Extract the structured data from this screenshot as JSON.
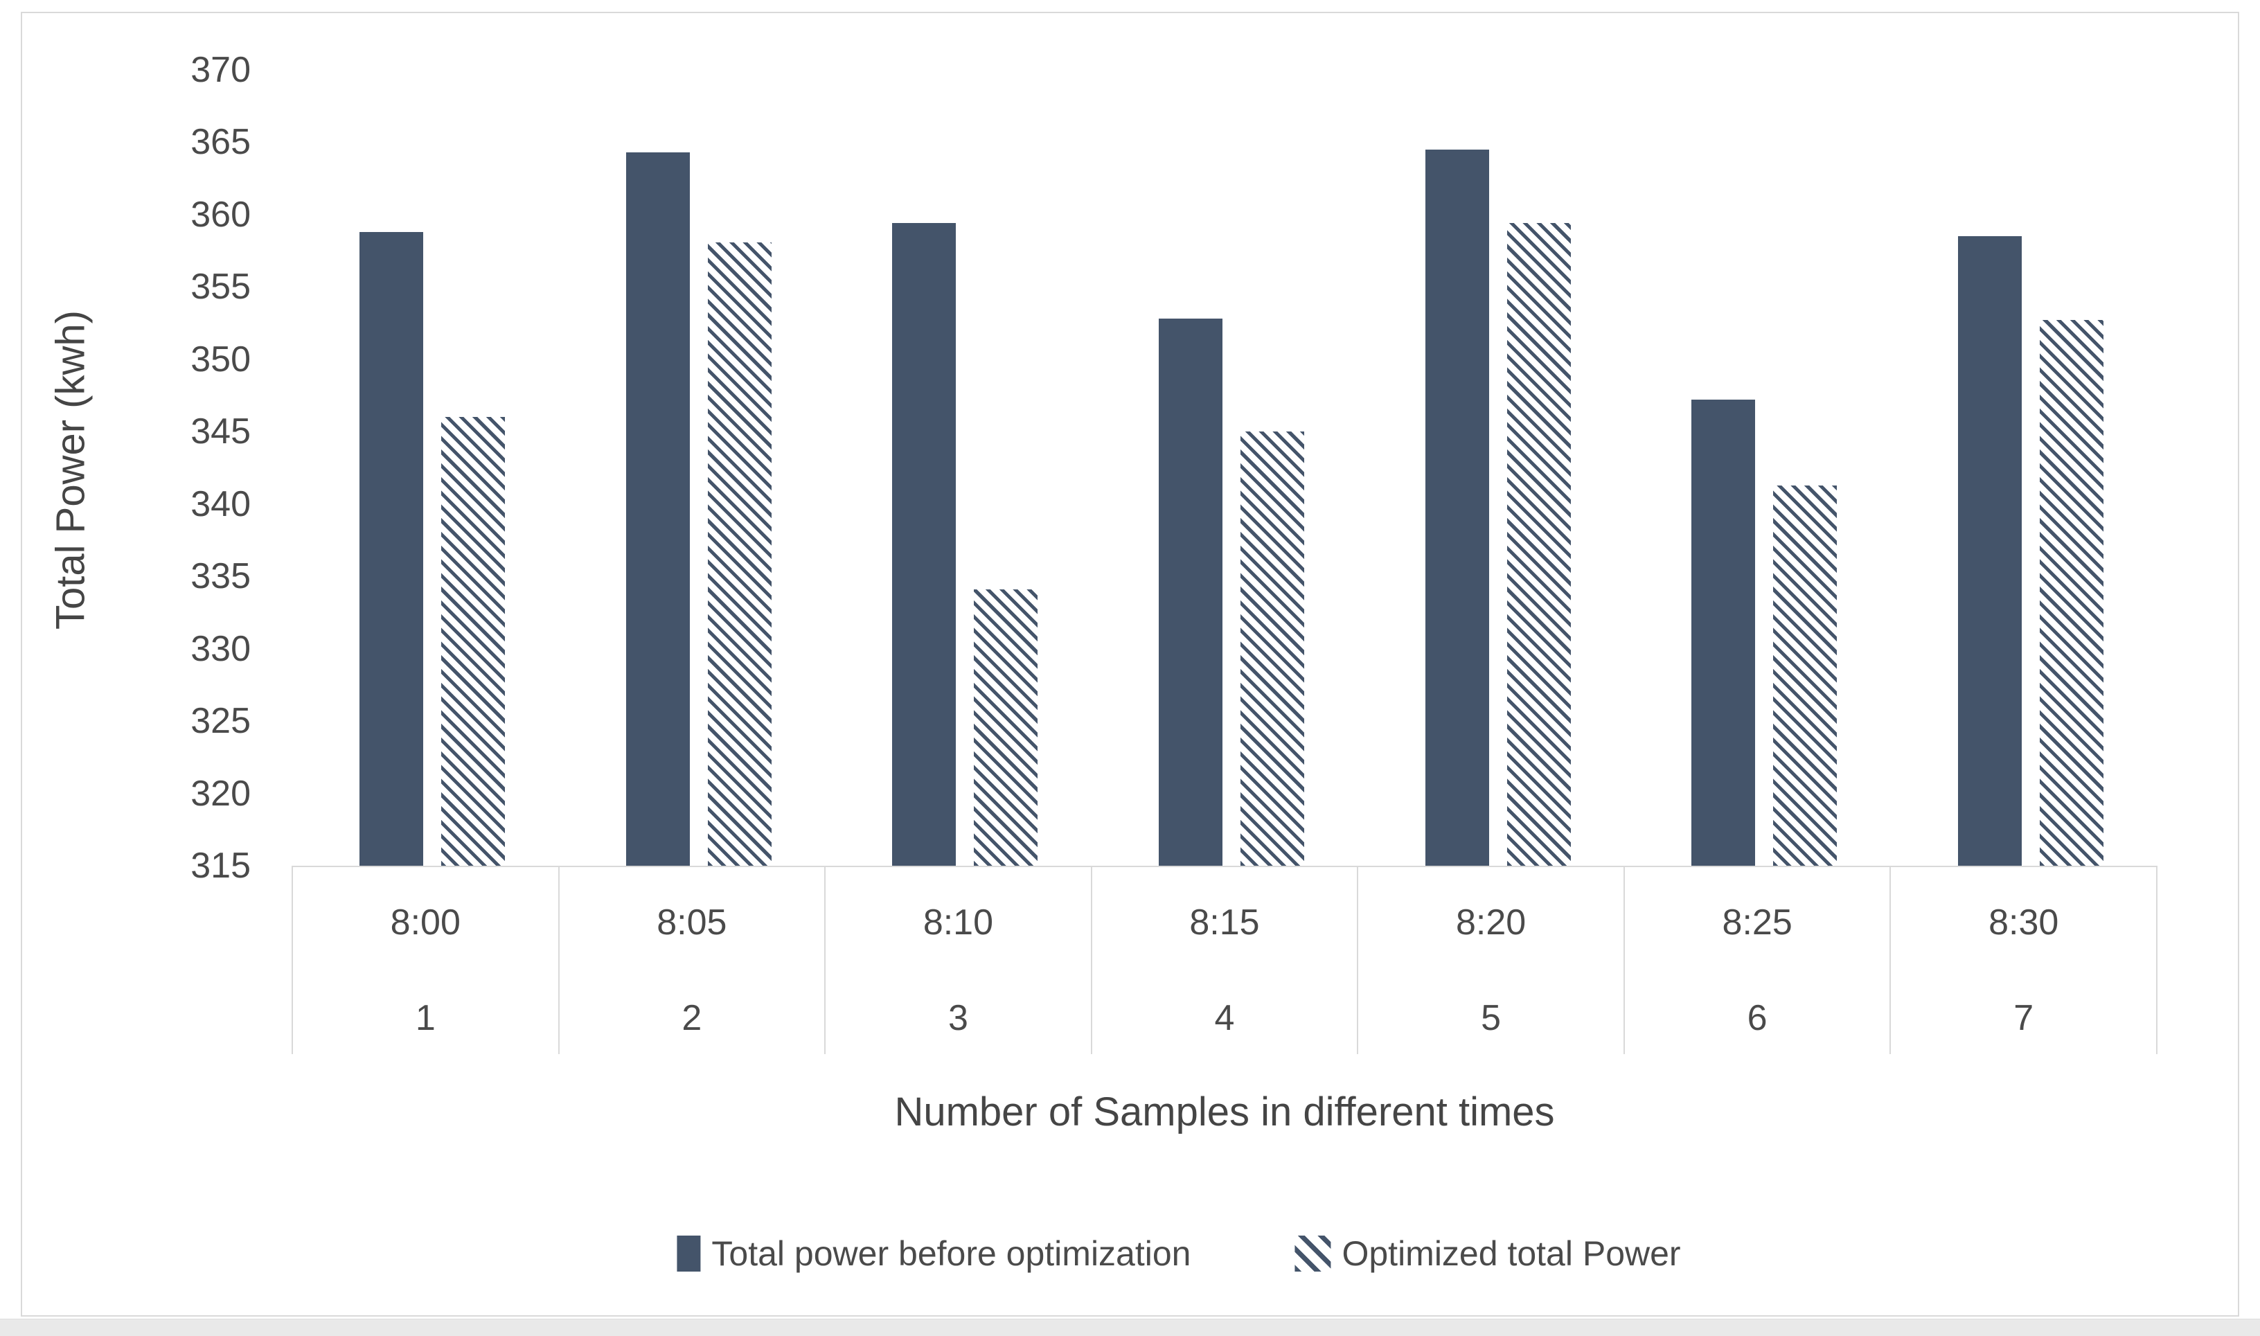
{
  "chart_data": {
    "type": "bar",
    "title": "",
    "xlabel": "Number of Samples in different times",
    "ylabel": "Total Power (kwh)",
    "ylim": [
      315,
      370
    ],
    "ytick_step": 5,
    "ytick_labels": [
      "370",
      "365",
      "360",
      "355",
      "350",
      "345",
      "340",
      "335",
      "330",
      "325",
      "320",
      "315"
    ],
    "grid": "off",
    "legend_position": "bottom",
    "categories": [
      {
        "time": "8:00",
        "sample": "1"
      },
      {
        "time": "8:05",
        "sample": "2"
      },
      {
        "time": "8:10",
        "sample": "3"
      },
      {
        "time": "8:15",
        "sample": "4"
      },
      {
        "time": "8:20",
        "sample": "5"
      },
      {
        "time": "8:25",
        "sample": "6"
      },
      {
        "time": "8:30",
        "sample": "7"
      }
    ],
    "series": [
      {
        "name": "Total power before optimization",
        "style": "solid",
        "values": [
          358.8,
          364.3,
          359.4,
          352.8,
          364.5,
          347.2,
          358.5
        ]
      },
      {
        "name": "Optimized total Power",
        "style": "diagonal-hatch",
        "values": [
          346.0,
          358.1,
          334.1,
          345.0,
          359.4,
          341.3,
          352.7
        ]
      }
    ]
  },
  "colors": {
    "bar_fill": "#44546A",
    "hatch_stroke": "#44546A",
    "axis_text": "#4a4a4a",
    "border": "#d9d9d9",
    "background": "#ffffff"
  }
}
